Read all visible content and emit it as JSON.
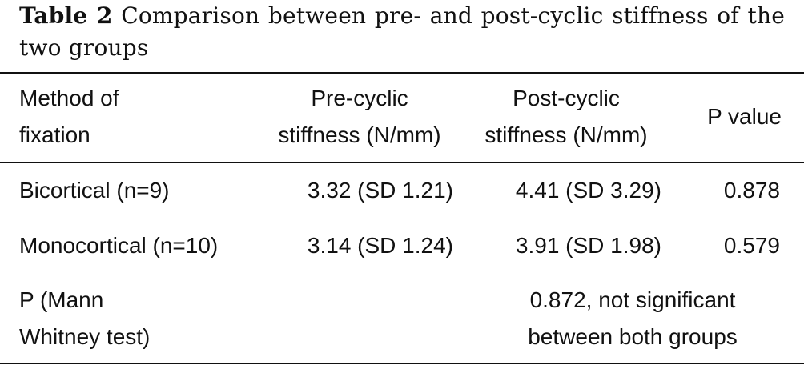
{
  "caption": {
    "label": "Table 2",
    "text": "Comparison between pre- and post-cyclic stiffness of the two groups"
  },
  "table": {
    "headers": {
      "method_line1": "Method of",
      "method_line2": "fixation",
      "pre_line1": "Pre-cyclic",
      "pre_line2": "stiffness (N/mm)",
      "post_line1": "Post-cyclic",
      "post_line2": "stiffness (N/mm)",
      "p_value": "P value"
    },
    "rows": [
      {
        "method": "Bicortical (n=9)",
        "pre": "3.32 (SD 1.21)",
        "post": "4.41 (SD 3.29)",
        "p": "0.878"
      },
      {
        "method": "Monocortical (n=10)",
        "pre": "3.14 (SD 1.24)",
        "post": "3.91 (SD 1.98)",
        "p": "0.579"
      }
    ],
    "footer": {
      "label_line1": "P (Mann",
      "label_line2": "Whitney test)",
      "result_line1": "0.872, not significant",
      "result_line2": "between both groups"
    }
  }
}
